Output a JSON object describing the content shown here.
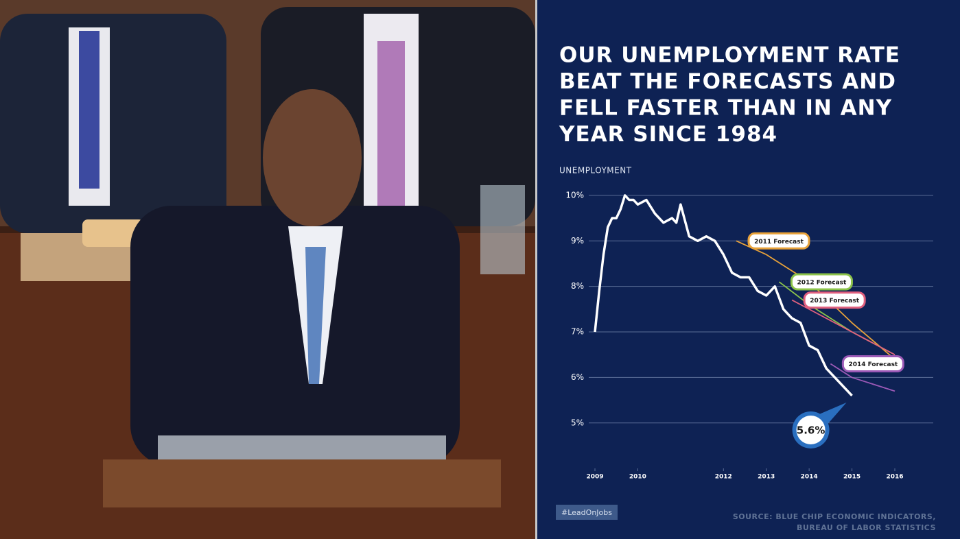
{
  "chart_data": {
    "type": "line",
    "title": [
      "OUR UNEMPLOYMENT RATE",
      "BEAT THE FORECASTS AND",
      "FELL FASTER THAN IN ANY",
      "YEAR SINCE 1984"
    ],
    "ylabel": "UNEMPLOYMENT",
    "xlim": [
      2009,
      2016
    ],
    "xticks": [
      2009,
      2010,
      2012,
      2013,
      2014,
      2015,
      2016
    ],
    "ylim": [
      4.5,
      10.3
    ],
    "yticks": [
      {
        "value": 5,
        "label": "5%"
      },
      {
        "value": 6,
        "label": "6%"
      },
      {
        "value": 7,
        "label": "7%"
      },
      {
        "value": 8,
        "label": "8%"
      },
      {
        "value": 9,
        "label": "9%"
      },
      {
        "value": 10,
        "label": "10%"
      }
    ],
    "grid": true,
    "series": [
      {
        "name": "Unemployment",
        "color": "#ffffff",
        "x": [
          2009.0,
          2009.1,
          2009.2,
          2009.3,
          2009.4,
          2009.5,
          2009.6,
          2009.7,
          2009.8,
          2009.9,
          2010.0,
          2010.2,
          2010.4,
          2010.6,
          2010.8,
          2010.9,
          2011.0,
          2011.2,
          2011.4,
          2011.6,
          2011.8,
          2012.0,
          2012.2,
          2012.4,
          2012.6,
          2012.8,
          2013.0,
          2013.2,
          2013.4,
          2013.6,
          2013.8,
          2014.0,
          2014.2,
          2014.4,
          2014.6,
          2014.8,
          2015.0
        ],
        "values": [
          7.0,
          7.9,
          8.7,
          9.3,
          9.5,
          9.5,
          9.7,
          10.0,
          9.9,
          9.9,
          9.8,
          9.9,
          9.6,
          9.4,
          9.5,
          9.4,
          9.8,
          9.1,
          9.0,
          9.1,
          9.0,
          8.7,
          8.3,
          8.2,
          8.2,
          7.9,
          7.8,
          8.0,
          7.5,
          7.3,
          7.2,
          6.7,
          6.6,
          6.2,
          6.0,
          5.8,
          5.6
        ],
        "value_labels": [
          null,
          null,
          null,
          null,
          null,
          null,
          null,
          null,
          null,
          null,
          null,
          null,
          null,
          null,
          null,
          null,
          null,
          null,
          null,
          null,
          null,
          null,
          null,
          null,
          null,
          null,
          null,
          null,
          null,
          null,
          null,
          null,
          null,
          null,
          null,
          null,
          "5.6%"
        ]
      },
      {
        "name": "2011 Forecast",
        "color": "#e8a23a",
        "x": [
          2012.3,
          2013,
          2014,
          2015,
          2016
        ],
        "values": [
          9.0,
          8.7,
          8.1,
          7.2,
          6.4
        ]
      },
      {
        "name": "2012 Forecast",
        "color": "#8cc34a",
        "x": [
          2013.3,
          2014,
          2015,
          2016
        ],
        "values": [
          8.1,
          7.6,
          7.0,
          6.5
        ]
      },
      {
        "name": "2013 Forecast",
        "color": "#e0607e",
        "x": [
          2013.6,
          2014,
          2015,
          2016
        ],
        "values": [
          7.7,
          7.5,
          7.0,
          6.5
        ]
      },
      {
        "name": "2014 Forecast",
        "color": "#9b59b6",
        "x": [
          2014.5,
          2015,
          2016
        ],
        "values": [
          6.3,
          6.0,
          5.7
        ]
      }
    ],
    "tag": "#LeadOnJobs",
    "source": [
      "SOURCE: BLUE CHIP ECONOMIC INDICATORS,",
      "BUREAU OF LABOR STATISTICS"
    ]
  }
}
